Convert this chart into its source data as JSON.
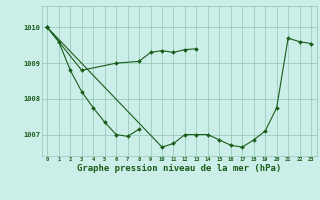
{
  "bg_color": "#cceee8",
  "grid_color": "#99ccbb",
  "line_color": "#1a5c1a",
  "marker_color": "#1a5c1a",
  "xlabel": "Graphe pression niveau de la mer (hPa)",
  "xlabel_fontsize": 6.5,
  "xtick_labels": [
    "0",
    "1",
    "2",
    "3",
    "4",
    "5",
    "6",
    "7",
    "8",
    "9",
    "10",
    "11",
    "12",
    "13",
    "14",
    "15",
    "16",
    "17",
    "18",
    "19",
    "20",
    "21",
    "22",
    "23"
  ],
  "ytick_labels": [
    "1007",
    "1008",
    "1009",
    "1010"
  ],
  "ytick_vals": [
    1007,
    1008,
    1009,
    1010
  ],
  "ylim": [
    1006.4,
    1010.6
  ],
  "xlim": [
    -0.5,
    23.5
  ],
  "series": [
    [
      [
        0,
        1010.0
      ],
      [
        1,
        1009.6
      ],
      [
        2,
        1008.8
      ],
      [
        3,
        1008.2
      ],
      [
        4,
        1007.75
      ],
      [
        5,
        1007.35
      ],
      [
        6,
        1007.0
      ],
      [
        7,
        1006.95
      ],
      [
        8,
        1007.15
      ]
    ],
    [
      [
        0,
        1010.0
      ],
      [
        3,
        1008.8
      ],
      [
        6,
        1009.0
      ],
      [
        8,
        1009.05
      ],
      [
        9,
        1009.3
      ],
      [
        10,
        1009.35
      ],
      [
        11,
        1009.3
      ],
      [
        12,
        1009.38
      ],
      [
        13,
        1009.4
      ]
    ],
    [
      [
        0,
        1010.0
      ],
      [
        10,
        1006.65
      ],
      [
        11,
        1006.75
      ],
      [
        12,
        1007.0
      ],
      [
        13,
        1007.0
      ],
      [
        14,
        1007.0
      ],
      [
        15,
        1006.85
      ],
      [
        16,
        1006.7
      ],
      [
        17,
        1006.65
      ],
      [
        18,
        1006.85
      ],
      [
        19,
        1007.1
      ],
      [
        20,
        1007.75
      ],
      [
        21,
        1009.7
      ],
      [
        22,
        1009.6
      ],
      [
        23,
        1009.55
      ]
    ]
  ]
}
